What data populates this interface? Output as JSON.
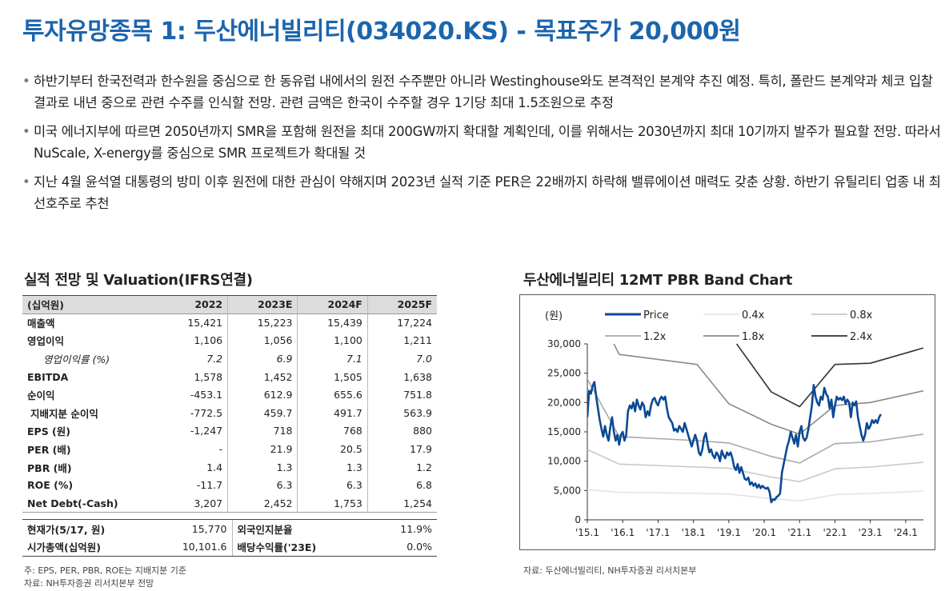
{
  "header": {
    "title": "투자유망종목 1: 두산에너빌리티(034020.KS) - 목표주가 20,000원"
  },
  "bullets": [
    "하반기부터 한국전력과 한수원을 중심으로 한 동유럽 내에서의 원전 수주뿐만 아니라 Westinghouse와도 본격적인 본계약 추진 예정. 특히, 폴란드 본계약과 체코 입찰 결과로 내년 중으로 관련 수주를 인식할 전망. 관련 금액은 한국이 수주할 경우 1기당 최대 1.5조원으로 추정",
    "미국 에너지부에 따르면 2050년까지 SMR을 포함해 원전을 최대 200GW까지 확대할 계획인데, 이를 위해서는 2030년까지 최대 10기까지 발주가 필요할 전망. 따라서 NuScale, X-energy를 중심으로 SMR 프로젝트가 확대될 것",
    "지난 4월 윤석열 대통령의 방미 이후 원전에 대한 관심이 약해지며 2023년 실적 기준 PER은 22배까지 하락해 밸류에이션 매력도 갖춘 상황. 하반기 유틸리티 업종 내 최선호주로 추천"
  ],
  "table": {
    "title": "실적 전망 및 Valuation(IFRS연결)",
    "header": [
      "(십억원)",
      "2022",
      "2023E",
      "2024F",
      "2025F"
    ],
    "rows": [
      [
        "매출액",
        "15,421",
        "15,223",
        "15,439",
        "17,224"
      ],
      [
        "영업이익",
        "1,106",
        "1,056",
        "1,100",
        "1,211"
      ],
      [
        "영업이익률 (%)",
        "7.2",
        "6.9",
        "7.1",
        "7.0"
      ],
      [
        "EBITDA",
        "1,578",
        "1,452",
        "1,505",
        "1,638"
      ],
      [
        "순이익",
        "-453.1",
        "612.9",
        "655.6",
        "751.8"
      ],
      [
        "지배지분 순이익",
        "-772.5",
        "459.7",
        "491.7",
        "563.9"
      ],
      [
        "EPS (원)",
        "-1,247",
        "718",
        "768",
        "880"
      ],
      [
        "PER (배)",
        "-",
        "21.9",
        "20.5",
        "17.9"
      ],
      [
        "PBR (배)",
        "1.4",
        "1.3",
        "1.3",
        "1.2"
      ],
      [
        "ROE (%)",
        "-11.7",
        "6.3",
        "6.3",
        "6.8"
      ],
      [
        "Net Debt(-Cash)",
        "3,207",
        "2,452",
        "1,753",
        "1,254"
      ]
    ],
    "market": [
      [
        "현재가(5/17, 원)",
        "15,770",
        "외국인지분율",
        "11.9%"
      ],
      [
        "시가총액(십억원)",
        "10,101.6",
        "배당수익률('23E)",
        "0.0%"
      ]
    ],
    "note1": "주: EPS, PER, PBR, ROE는 지배지분 기준",
    "note2": "자료: NH투자증권 리서치본부 전망"
  },
  "chart_data": {
    "type": "line",
    "title": "두산에너빌리티 12MT PBR Band Chart",
    "ylabel": "(원)",
    "ylim": [
      0,
      30000
    ],
    "yticks": [
      0,
      5000,
      10000,
      15000,
      20000,
      25000,
      30000
    ],
    "ytick_labels": [
      "0",
      "5,000",
      "10,000",
      "15,000",
      "20,000",
      "25,000",
      "30,000"
    ],
    "xlim": [
      2015.0,
      2024.5
    ],
    "xticks": [
      2015,
      2016,
      2017,
      2018,
      2019,
      2020,
      2021,
      2022,
      2023,
      2024
    ],
    "xtick_labels": [
      "'15.1",
      "'16.1",
      "'17.1",
      "'18.1",
      "'19.1",
      "'20.1",
      "'21.1",
      "'22.1",
      "'23.1",
      "'24.1"
    ],
    "legend_position": "top",
    "grid": false,
    "source": "자료: 두산에너빌리티, NH투자증권 리서치본부",
    "series": [
      {
        "name": "Price",
        "color": "#0b4a94",
        "points": [
          [
            2015.0,
            17500
          ],
          [
            2015.05,
            22000
          ],
          [
            2015.1,
            21500
          ],
          [
            2015.15,
            22800
          ],
          [
            2015.2,
            23500
          ],
          [
            2015.25,
            21000
          ],
          [
            2015.3,
            19000
          ],
          [
            2015.35,
            17000
          ],
          [
            2015.4,
            15500
          ],
          [
            2015.45,
            14200
          ],
          [
            2015.5,
            16000
          ],
          [
            2015.55,
            14500
          ],
          [
            2015.6,
            13500
          ],
          [
            2015.65,
            15800
          ],
          [
            2015.7,
            17500
          ],
          [
            2015.75,
            15000
          ],
          [
            2015.8,
            13500
          ],
          [
            2015.85,
            14500
          ],
          [
            2015.9,
            12800
          ],
          [
            2015.95,
            14500
          ],
          [
            2016.0,
            15000
          ],
          [
            2016.05,
            13500
          ],
          [
            2016.1,
            14500
          ],
          [
            2016.15,
            18500
          ],
          [
            2016.2,
            19500
          ],
          [
            2016.25,
            19000
          ],
          [
            2016.3,
            20000
          ],
          [
            2016.35,
            18500
          ],
          [
            2016.4,
            20500
          ],
          [
            2016.45,
            19500
          ],
          [
            2016.5,
            18800
          ],
          [
            2016.55,
            20000
          ],
          [
            2016.6,
            19500
          ],
          [
            2016.65,
            17500
          ],
          [
            2016.7,
            18500
          ],
          [
            2016.75,
            17800
          ],
          [
            2016.8,
            19500
          ],
          [
            2016.85,
            20500
          ],
          [
            2016.9,
            20800
          ],
          [
            2016.95,
            20000
          ],
          [
            2017.0,
            19500
          ],
          [
            2017.05,
            20500
          ],
          [
            2017.1,
            21000
          ],
          [
            2017.15,
            20500
          ],
          [
            2017.2,
            21000
          ],
          [
            2017.25,
            19000
          ],
          [
            2017.3,
            17500
          ],
          [
            2017.35,
            17000
          ],
          [
            2017.4,
            16500
          ],
          [
            2017.45,
            15200
          ],
          [
            2017.5,
            15500
          ],
          [
            2017.55,
            15000
          ],
          [
            2017.6,
            16000
          ],
          [
            2017.65,
            15500
          ],
          [
            2017.7,
            15000
          ],
          [
            2017.75,
            16500
          ],
          [
            2017.8,
            15500
          ],
          [
            2017.85,
            14500
          ],
          [
            2017.9,
            13500
          ],
          [
            2017.95,
            12500
          ],
          [
            2018.0,
            13500
          ],
          [
            2018.05,
            14500
          ],
          [
            2018.1,
            13500
          ],
          [
            2018.15,
            11500
          ],
          [
            2018.2,
            11000
          ],
          [
            2018.25,
            12000
          ],
          [
            2018.3,
            14000
          ],
          [
            2018.35,
            14800
          ],
          [
            2018.4,
            13000
          ],
          [
            2018.45,
            11500
          ],
          [
            2018.5,
            12000
          ],
          [
            2018.55,
            11000
          ],
          [
            2018.6,
            10500
          ],
          [
            2018.65,
            11500
          ],
          [
            2018.7,
            11000
          ],
          [
            2018.75,
            10000
          ],
          [
            2018.8,
            11800
          ],
          [
            2018.85,
            11000
          ],
          [
            2018.9,
            10500
          ],
          [
            2018.95,
            11500
          ],
          [
            2019.0,
            11000
          ],
          [
            2019.05,
            11500
          ],
          [
            2019.1,
            10500
          ],
          [
            2019.15,
            9000
          ],
          [
            2019.2,
            8500
          ],
          [
            2019.25,
            9500
          ],
          [
            2019.3,
            8000
          ],
          [
            2019.35,
            9000
          ],
          [
            2019.4,
            8000
          ],
          [
            2019.45,
            7000
          ],
          [
            2019.5,
            6800
          ],
          [
            2019.55,
            7200
          ],
          [
            2019.6,
            6000
          ],
          [
            2019.65,
            6400
          ],
          [
            2019.7,
            5800
          ],
          [
            2019.75,
            6200
          ],
          [
            2019.8,
            5500
          ],
          [
            2019.85,
            6000
          ],
          [
            2019.9,
            5400
          ],
          [
            2019.95,
            5800
          ],
          [
            2020.0,
            5500
          ],
          [
            2020.05,
            5300
          ],
          [
            2020.1,
            5500
          ],
          [
            2020.15,
            4800
          ],
          [
            2020.2,
            3000
          ],
          [
            2020.25,
            3500
          ],
          [
            2020.3,
            3400
          ],
          [
            2020.35,
            3900
          ],
          [
            2020.4,
            4100
          ],
          [
            2020.45,
            4500
          ],
          [
            2020.5,
            8000
          ],
          [
            2020.55,
            9500
          ],
          [
            2020.6,
            11000
          ],
          [
            2020.65,
            12500
          ],
          [
            2020.7,
            13500
          ],
          [
            2020.75,
            15000
          ],
          [
            2020.8,
            14000
          ],
          [
            2020.85,
            13000
          ],
          [
            2020.9,
            14500
          ],
          [
            2020.95,
            12500
          ],
          [
            2021.0,
            15000
          ],
          [
            2021.05,
            16000
          ],
          [
            2021.1,
            14000
          ],
          [
            2021.15,
            13500
          ],
          [
            2021.2,
            14000
          ],
          [
            2021.25,
            15500
          ],
          [
            2021.3,
            17500
          ],
          [
            2021.35,
            19500
          ],
          [
            2021.4,
            23000
          ],
          [
            2021.45,
            21000
          ],
          [
            2021.5,
            20000
          ],
          [
            2021.55,
            19500
          ],
          [
            2021.6,
            21000
          ],
          [
            2021.65,
            20500
          ],
          [
            2021.7,
            22500
          ],
          [
            2021.75,
            21500
          ],
          [
            2021.8,
            21000
          ],
          [
            2021.85,
            19000
          ],
          [
            2021.9,
            20500
          ],
          [
            2021.95,
            17500
          ],
          [
            2022.0,
            19500
          ],
          [
            2022.05,
            21000
          ],
          [
            2022.1,
            20500
          ],
          [
            2022.15,
            20800
          ],
          [
            2022.2,
            20400
          ],
          [
            2022.25,
            21000
          ],
          [
            2022.3,
            19800
          ],
          [
            2022.35,
            20500
          ],
          [
            2022.4,
            20000
          ],
          [
            2022.45,
            17500
          ],
          [
            2022.5,
            20000
          ],
          [
            2022.55,
            19500
          ],
          [
            2022.6,
            20200
          ],
          [
            2022.65,
            17500
          ],
          [
            2022.7,
            16000
          ],
          [
            2022.75,
            14500
          ],
          [
            2022.8,
            13500
          ],
          [
            2022.85,
            14500
          ],
          [
            2022.9,
            16500
          ],
          [
            2022.95,
            15500
          ],
          [
            2023.0,
            16000
          ],
          [
            2023.05,
            17000
          ],
          [
            2023.1,
            16500
          ],
          [
            2023.15,
            17000
          ],
          [
            2023.2,
            16500
          ],
          [
            2023.25,
            17500
          ],
          [
            2023.3,
            18000
          ]
        ]
      },
      {
        "name": "0.4x",
        "color": "#e4e4e4",
        "points": [
          [
            2015.0,
            5100
          ],
          [
            2015.9,
            4700
          ],
          [
            2018.1,
            4500
          ],
          [
            2019.0,
            4400
          ],
          [
            2020.2,
            3600
          ],
          [
            2021.0,
            3200
          ],
          [
            2022.0,
            4300
          ],
          [
            2023.0,
            4500
          ],
          [
            2024.5,
            4900
          ]
        ]
      },
      {
        "name": "0.8x",
        "color": "#c8c8c8",
        "points": [
          [
            2015.0,
            12000
          ],
          [
            2015.9,
            9500
          ],
          [
            2018.1,
            9000
          ],
          [
            2019.0,
            8800
          ],
          [
            2020.2,
            7300
          ],
          [
            2021.0,
            6500
          ],
          [
            2022.0,
            8700
          ],
          [
            2023.0,
            9000
          ],
          [
            2024.5,
            9800
          ]
        ]
      },
      {
        "name": "1.2x",
        "color": "#a9a9a9",
        "points": [
          [
            2015.0,
            24000
          ],
          [
            2015.9,
            14200
          ],
          [
            2018.1,
            13500
          ],
          [
            2019.0,
            13100
          ],
          [
            2020.2,
            10800
          ],
          [
            2021.0,
            9700
          ],
          [
            2022.0,
            13000
          ],
          [
            2023.0,
            13300
          ],
          [
            2024.5,
            14600
          ]
        ]
      },
      {
        "name": "1.8x",
        "color": "#8a8a8a",
        "points": [
          [
            2015.75,
            30000
          ],
          [
            2015.9,
            28200
          ],
          [
            2018.1,
            26500
          ],
          [
            2019.0,
            19800
          ],
          [
            2020.2,
            16300
          ],
          [
            2021.0,
            14600
          ],
          [
            2022.0,
            19500
          ],
          [
            2023.0,
            20000
          ],
          [
            2024.5,
            22000
          ]
        ]
      },
      {
        "name": "2.4x",
        "color": "#333333",
        "points": [
          [
            2019.22,
            30000
          ],
          [
            2020.2,
            21800
          ],
          [
            2021.0,
            19300
          ],
          [
            2022.0,
            26500
          ],
          [
            2023.0,
            26700
          ],
          [
            2024.5,
            29300
          ]
        ]
      }
    ]
  }
}
